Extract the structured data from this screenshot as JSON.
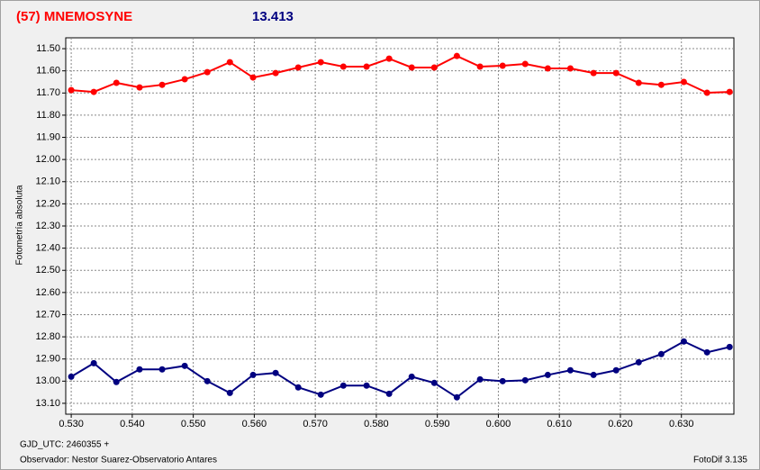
{
  "chart_data": {
    "type": "line",
    "title": "(57) MNEMOSYNE",
    "subtitle": "13.413",
    "title_color": "#ff0000",
    "subtitle_color": "#000080",
    "y_label": "Fotometría absoluta",
    "x_label": "GJD_UTC: 2460355 +",
    "observer": "Observador: Nestor Suarez-Observatorio Antares",
    "software": "FotoDif 3.135",
    "x": [
      0.53,
      0.5337,
      0.5374,
      0.5412,
      0.5449,
      0.5486,
      0.5523,
      0.556,
      0.5598,
      0.5635,
      0.5672,
      0.5709,
      0.5746,
      0.5784,
      0.5821,
      0.5858,
      0.5895,
      0.5932,
      0.597,
      0.6007,
      0.6044,
      0.6081,
      0.6118,
      0.6156,
      0.6193,
      0.623,
      0.6267,
      0.6304,
      0.6342,
      0.6379
    ],
    "series": [
      {
        "color": "#ff0000",
        "values": [
          11.687,
          11.695,
          11.654,
          11.675,
          11.663,
          11.638,
          11.606,
          11.561,
          11.63,
          11.61,
          11.585,
          11.561,
          11.581,
          11.581,
          11.545,
          11.585,
          11.585,
          11.533,
          11.581,
          11.577,
          11.569,
          11.589,
          11.589,
          11.61,
          11.61,
          11.654,
          11.663,
          11.65,
          11.699,
          11.695
        ]
      },
      {
        "color": "#000080",
        "values": [
          12.98,
          12.919,
          13.004,
          12.947,
          12.947,
          12.931,
          13.0,
          13.053,
          12.972,
          12.963,
          13.028,
          13.061,
          13.02,
          13.02,
          13.057,
          12.98,
          13.008,
          13.073,
          12.992,
          13.0,
          12.996,
          12.972,
          12.951,
          12.972,
          12.951,
          12.915,
          12.878,
          12.821,
          12.87,
          12.846
        ]
      }
    ],
    "xlim": [
      0.5291,
      0.6386
    ],
    "xticks": [
      {
        "value": 0.53,
        "label": "0.530"
      },
      {
        "value": 0.54,
        "label": "0.540"
      },
      {
        "value": 0.55,
        "label": "0.550"
      },
      {
        "value": 0.56,
        "label": "0.560"
      },
      {
        "value": 0.57,
        "label": "0.570"
      },
      {
        "value": 0.58,
        "label": "0.580"
      },
      {
        "value": 0.59,
        "label": "0.590"
      },
      {
        "value": 0.6,
        "label": "0.600"
      },
      {
        "value": 0.61,
        "label": "0.610"
      },
      {
        "value": 0.62,
        "label": "0.620"
      },
      {
        "value": 0.63,
        "label": "0.630"
      }
    ],
    "ylim": [
      11.451,
      13.149
    ],
    "y_inverted": true,
    "yticks": [
      {
        "value": 11.5,
        "label": "11.50"
      },
      {
        "value": 11.6,
        "label": "11.60"
      },
      {
        "value": 11.7,
        "label": "11.70"
      },
      {
        "value": 11.8,
        "label": "11.80"
      },
      {
        "value": 11.9,
        "label": "11.90"
      },
      {
        "value": 12.0,
        "label": "12.00"
      },
      {
        "value": 12.1,
        "label": "12.10"
      },
      {
        "value": 12.2,
        "label": "12.20"
      },
      {
        "value": 12.3,
        "label": "12.30"
      },
      {
        "value": 12.4,
        "label": "12.40"
      },
      {
        "value": 12.5,
        "label": "12.50"
      },
      {
        "value": 12.6,
        "label": "12.60"
      },
      {
        "value": 12.7,
        "label": "12.70"
      },
      {
        "value": 12.8,
        "label": "12.80"
      },
      {
        "value": 12.9,
        "label": "12.90"
      },
      {
        "value": 13.0,
        "label": "13.00"
      },
      {
        "value": 13.1,
        "label": "13.10"
      }
    ],
    "grid": true
  }
}
